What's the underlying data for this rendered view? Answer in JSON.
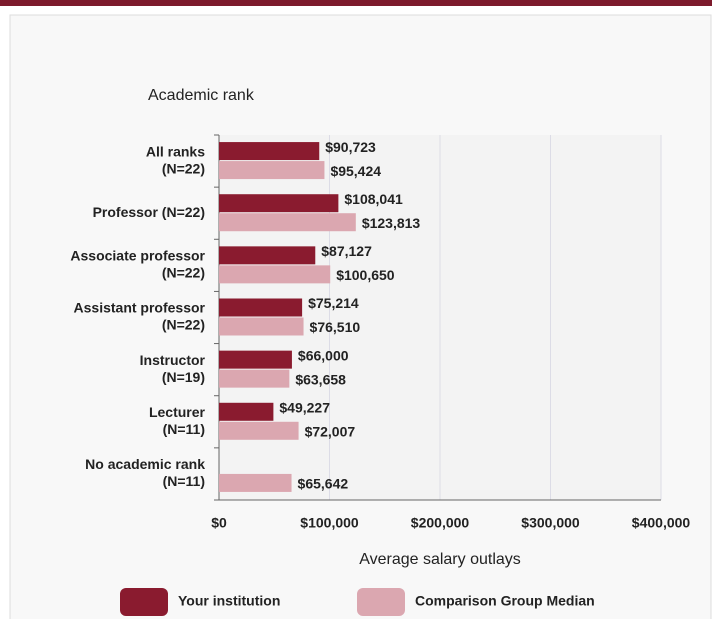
{
  "chart_data": {
    "type": "hbar",
    "y_axis_title": "Academic rank",
    "x_axis_title": "Average salary outlays",
    "categories": [
      [
        "All ranks",
        "(N=22)"
      ],
      [
        "Professor (N=22)"
      ],
      [
        "Associate professor",
        "(N=22)"
      ],
      [
        "Assistant professor",
        "(N=22)"
      ],
      [
        "Instructor",
        "(N=19)"
      ],
      [
        "Lecturer",
        "(N=11)"
      ],
      [
        "No academic rank",
        "(N=11)"
      ]
    ],
    "series": [
      {
        "name": "Your institution",
        "color": "#8a1b2f",
        "values": [
          90723,
          108041,
          87127,
          75214,
          66000,
          49227,
          null
        ],
        "value_labels": [
          "$90,723",
          "$108,041",
          "$87,127",
          "$75,214",
          "$66,000",
          "$49,227",
          null
        ]
      },
      {
        "name": "Comparison Group Median",
        "color": "#dba7b0",
        "values": [
          95424,
          123813,
          100650,
          76510,
          63658,
          72007,
          65642
        ],
        "value_labels": [
          "$95,424",
          "$123,813",
          "$100,650",
          "$76,510",
          "$63,658",
          "$72,007",
          "$65,642"
        ]
      }
    ],
    "xlim": [
      0,
      400000
    ],
    "xticks": [
      {
        "value": 0,
        "label": "$0"
      },
      {
        "value": 100000,
        "label": "$100,000"
      },
      {
        "value": 200000,
        "label": "$200,000"
      },
      {
        "value": 300000,
        "label": "$300,000"
      },
      {
        "value": 400000,
        "label": "$400,000"
      }
    ],
    "grid": true
  }
}
